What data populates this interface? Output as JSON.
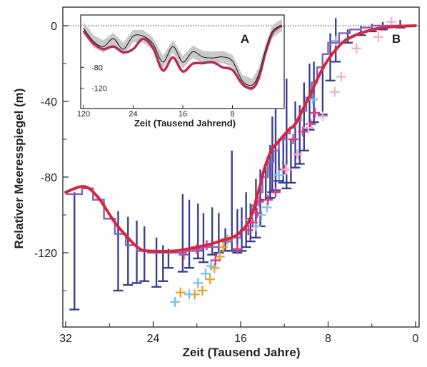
{
  "chart_data": [
    {
      "panel_label": "B",
      "type": "line",
      "xlabel": "Zeit (Tausend Jahre)",
      "ylabel": "Relativer Meeresspiegel (m)",
      "xlim": [
        32,
        0
      ],
      "ylim": [
        -160,
        5
      ],
      "x_ticks": [
        "32",
        "24",
        "16",
        "8",
        "0"
      ],
      "y_ticks": [
        "0",
        "-40",
        "-80",
        "-120"
      ],
      "series": [
        {
          "kind": "curve",
          "color": "#d6263a",
          "x": [
            32,
            30.3,
            29,
            27.5,
            26,
            25.2,
            24.5,
            22,
            20,
            18.5,
            17.5,
            16.8,
            16,
            15.3,
            14.8,
            14.5,
            14.2,
            13.8,
            13.2,
            12.5,
            11.6,
            11,
            10.3,
            9.6,
            8.8,
            8,
            7.2,
            6.5,
            5.5,
            4.5,
            3.5,
            2.5,
            1.5,
            0
          ],
          "y": [
            -88,
            -85,
            -91,
            -104,
            -114,
            -118,
            -119,
            -119,
            -117,
            -115,
            -113,
            -112,
            -109,
            -104,
            -97,
            -90,
            -84,
            -75,
            -66,
            -61,
            -55,
            -52,
            -44,
            -36,
            -26,
            -18,
            -12,
            -8,
            -5,
            -3,
            -1.5,
            -0.8,
            -0.3,
            0
          ]
        },
        {
          "kind": "step",
          "color": "#8a63b8",
          "x": [
            32,
            30.5,
            29.5,
            28.5,
            27.5,
            26.5,
            25.5,
            24.5,
            23,
            21,
            19.5,
            18,
            16.8,
            16,
            15.5,
            15,
            14.5,
            14,
            13.5,
            13,
            12.5,
            12,
            11.5,
            11,
            10.5,
            10,
            9.5,
            9,
            8.5,
            8,
            7,
            6,
            5,
            4,
            3,
            2,
            1,
            0
          ],
          "y": [
            -89,
            -86,
            -92,
            -102,
            -110,
            -116,
            -119,
            -120,
            -120,
            -119,
            -117,
            -114,
            -112,
            -108,
            -102,
            -95,
            -88,
            -80,
            -72,
            -66,
            -60,
            -57,
            -54,
            -50,
            -45,
            -38,
            -30,
            -22,
            -15,
            -9,
            -4,
            -2,
            -1,
            0,
            0,
            0,
            0,
            0
          ]
        },
        {
          "kind": "error-bars",
          "color": "#3b3f94",
          "x": [
            31.2,
            27.2,
            26.3,
            25.5,
            24.8,
            23.7,
            23.1,
            22.6,
            21.3,
            20.7,
            19.9,
            19.4,
            18.6,
            18.0,
            17.4,
            16.8,
            16.3,
            15.9,
            15.5,
            15.1,
            14.6,
            14.2,
            13.7,
            13.3,
            13.1,
            12.8,
            12.5,
            12.1,
            11.8,
            11.4,
            11.0,
            10.6,
            10.2,
            9.7,
            9.3,
            8.5,
            7.8,
            7.3,
            6.2,
            5.0,
            4.0,
            3.0,
            1.4
          ],
          "ylow": [
            -150,
            -140,
            -137,
            -136,
            -135,
            -138,
            -135,
            -128,
            -130,
            -128,
            -123,
            -125,
            -121,
            -120,
            -119,
            -119,
            -120,
            -119,
            -117,
            -114,
            -112,
            -106,
            -92,
            -91,
            -88,
            -87,
            -82,
            -83,
            -86,
            -83,
            -75,
            -73,
            -66,
            -55,
            -51,
            -47,
            -29,
            -19,
            -9,
            -5,
            -3,
            -2,
            -1
          ],
          "yhigh": [
            -88,
            -98,
            -101,
            -103,
            -106,
            -112,
            -116,
            -118,
            -89,
            -92,
            -94,
            -99,
            -96,
            -99,
            -107,
            -66,
            -97,
            -96,
            -88,
            -94,
            -81,
            -76,
            -73,
            -63,
            -48,
            -44,
            -66,
            -60,
            -28,
            -60,
            -40,
            -42,
            -30,
            -20,
            -19,
            -16,
            -4,
            7,
            -2,
            0,
            1,
            2,
            3
          ]
        },
        {
          "kind": "markers",
          "name": "orange",
          "color": "#f2a32a",
          "x": [
            21.5,
            20.2,
            19.5,
            18.8,
            18.4,
            17.9,
            17.6,
            17.2
          ],
          "y": [
            -141,
            -142,
            -140,
            -134,
            -128,
            -122,
            -117,
            -113
          ]
        },
        {
          "kind": "markers",
          "name": "light-blue",
          "color": "#7cc4ec",
          "x": [
            22.0,
            20.7,
            19.9,
            19.2,
            18.7,
            14.6,
            14.1,
            13.6,
            12.5,
            9.4,
            7.3
          ],
          "y": [
            -146,
            -142,
            -136,
            -131,
            -127,
            -106,
            -100,
            -96,
            -79,
            -39,
            -8
          ]
        },
        {
          "kind": "markers",
          "name": "magenta",
          "color": "#d83d88",
          "x": [
            21.2,
            20.0,
            19.1,
            18.3,
            16.3,
            15.3,
            14.9,
            14.5,
            14.3,
            13.5,
            12.8,
            12.0,
            11.2,
            10.3,
            9.6,
            9.2
          ],
          "y": [
            -121,
            -118,
            -116,
            -124,
            -118,
            -108,
            -104,
            -99,
            -93,
            -92,
            -88,
            -76,
            -60,
            -56,
            -52,
            -46
          ]
        },
        {
          "kind": "markers",
          "name": "pink",
          "color": "#f0b4cc",
          "x": [
            11.8,
            10.8,
            9.8,
            8.5,
            7.4,
            6.8,
            5.4,
            3.4,
            2.2
          ],
          "y": [
            -76,
            -68,
            -54,
            -48,
            -35,
            -27,
            -12,
            -6,
            2
          ]
        }
      ]
    },
    {
      "panel_label": "A",
      "type": "line",
      "xlabel": "Zeit (Tausend Jahrend)",
      "xlim": [
        120,
        0
      ],
      "ylim": [
        -140,
        0
      ],
      "x_ticks": [
        "120",
        "24",
        "16",
        "8"
      ],
      "y_ticks": [
        "-80",
        "-120"
      ],
      "series": [
        {
          "kind": "curve",
          "color": "#d6263a",
          "x": [
            120,
            114,
            108,
            102,
            96,
            90,
            84,
            78,
            72,
            66,
            60,
            54,
            48,
            42,
            36,
            30,
            24,
            18,
            14,
            10,
            6,
            2,
            0
          ],
          "y": [
            -10,
            -34,
            -45,
            -40,
            -51,
            -45,
            -25,
            -43,
            -86,
            -61,
            -88,
            -73,
            -72,
            -70,
            -80,
            -85,
            -112,
            -120,
            -100,
            -52,
            -15,
            -3,
            0
          ]
        },
        {
          "kind": "curve",
          "color": "#222222",
          "x": [
            120,
            114,
            108,
            102,
            96,
            90,
            84,
            78,
            72,
            66,
            60,
            54,
            48,
            42,
            36,
            30,
            24,
            18,
            14,
            10,
            6,
            2,
            0
          ],
          "y": [
            -5,
            -30,
            -40,
            -25,
            -45,
            -20,
            -20,
            -35,
            -70,
            -40,
            -70,
            -50,
            -60,
            -62,
            -60,
            -68,
            -106,
            -114,
            -92,
            -47,
            -12,
            -2,
            0
          ]
        }
      ]
    }
  ]
}
